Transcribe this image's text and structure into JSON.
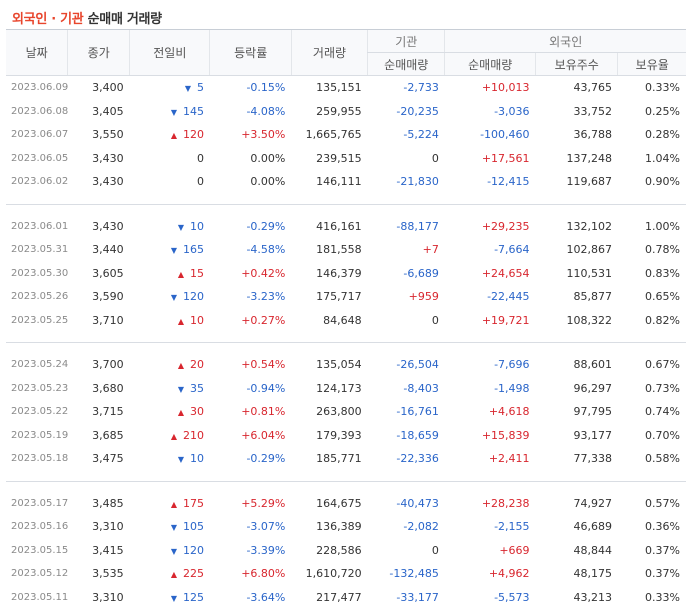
{
  "title": {
    "part1": "외국인 · 기관",
    "part2": "순매매 거래량"
  },
  "headers": {
    "date": "날짜",
    "close": "종가",
    "change": "전일비",
    "rate": "등락률",
    "volume": "거래량",
    "institution": "기관",
    "foreign": "외국인",
    "inst_net": "순매매량",
    "foreign_net": "순매매량",
    "holding": "보유주수",
    "holding_rate": "보유율"
  },
  "colors": {
    "up": "#d8262e",
    "down": "#2a65c9",
    "title_accent": "#e8452c"
  },
  "groups": [
    [
      {
        "date": "2023.06.09",
        "close": "3,400",
        "dir": "down",
        "change": "5",
        "rate": "-0.15%",
        "volume": "135,151",
        "inst": "-2,733",
        "foreign": "+10,013",
        "holding": "43,765",
        "hrate": "0.33%"
      },
      {
        "date": "2023.06.08",
        "close": "3,405",
        "dir": "down",
        "change": "145",
        "rate": "-4.08%",
        "volume": "259,955",
        "inst": "-20,235",
        "foreign": "-3,036",
        "holding": "33,752",
        "hrate": "0.25%"
      },
      {
        "date": "2023.06.07",
        "close": "3,550",
        "dir": "up",
        "change": "120",
        "rate": "+3.50%",
        "volume": "1,665,765",
        "inst": "-5,224",
        "foreign": "-100,460",
        "holding": "36,788",
        "hrate": "0.28%"
      },
      {
        "date": "2023.06.05",
        "close": "3,430",
        "dir": "none",
        "change": "0",
        "rate": "0.00%",
        "volume": "239,515",
        "inst": "0",
        "foreign": "+17,561",
        "holding": "137,248",
        "hrate": "1.04%"
      },
      {
        "date": "2023.06.02",
        "close": "3,430",
        "dir": "none",
        "change": "0",
        "rate": "0.00%",
        "volume": "146,111",
        "inst": "-21,830",
        "foreign": "-12,415",
        "holding": "119,687",
        "hrate": "0.90%"
      }
    ],
    [
      {
        "date": "2023.06.01",
        "close": "3,430",
        "dir": "down",
        "change": "10",
        "rate": "-0.29%",
        "volume": "416,161",
        "inst": "-88,177",
        "foreign": "+29,235",
        "holding": "132,102",
        "hrate": "1.00%"
      },
      {
        "date": "2023.05.31",
        "close": "3,440",
        "dir": "down",
        "change": "165",
        "rate": "-4.58%",
        "volume": "181,558",
        "inst": "+7",
        "foreign": "-7,664",
        "holding": "102,867",
        "hrate": "0.78%"
      },
      {
        "date": "2023.05.30",
        "close": "3,605",
        "dir": "up",
        "change": "15",
        "rate": "+0.42%",
        "volume": "146,379",
        "inst": "-6,689",
        "foreign": "+24,654",
        "holding": "110,531",
        "hrate": "0.83%"
      },
      {
        "date": "2023.05.26",
        "close": "3,590",
        "dir": "down",
        "change": "120",
        "rate": "-3.23%",
        "volume": "175,717",
        "inst": "+959",
        "foreign": "-22,445",
        "holding": "85,877",
        "hrate": "0.65%"
      },
      {
        "date": "2023.05.25",
        "close": "3,710",
        "dir": "up",
        "change": "10",
        "rate": "+0.27%",
        "volume": "84,648",
        "inst": "0",
        "foreign": "+19,721",
        "holding": "108,322",
        "hrate": "0.82%"
      }
    ],
    [
      {
        "date": "2023.05.24",
        "close": "3,700",
        "dir": "up",
        "change": "20",
        "rate": "+0.54%",
        "volume": "135,054",
        "inst": "-26,504",
        "foreign": "-7,696",
        "holding": "88,601",
        "hrate": "0.67%"
      },
      {
        "date": "2023.05.23",
        "close": "3,680",
        "dir": "down",
        "change": "35",
        "rate": "-0.94%",
        "volume": "124,173",
        "inst": "-8,403",
        "foreign": "-1,498",
        "holding": "96,297",
        "hrate": "0.73%"
      },
      {
        "date": "2023.05.22",
        "close": "3,715",
        "dir": "up",
        "change": "30",
        "rate": "+0.81%",
        "volume": "263,800",
        "inst": "-16,761",
        "foreign": "+4,618",
        "holding": "97,795",
        "hrate": "0.74%"
      },
      {
        "date": "2023.05.19",
        "close": "3,685",
        "dir": "up",
        "change": "210",
        "rate": "+6.04%",
        "volume": "179,393",
        "inst": "-18,659",
        "foreign": "+15,839",
        "holding": "93,177",
        "hrate": "0.70%"
      },
      {
        "date": "2023.05.18",
        "close": "3,475",
        "dir": "down",
        "change": "10",
        "rate": "-0.29%",
        "volume": "185,771",
        "inst": "-22,336",
        "foreign": "+2,411",
        "holding": "77,338",
        "hrate": "0.58%"
      }
    ],
    [
      {
        "date": "2023.05.17",
        "close": "3,485",
        "dir": "up",
        "change": "175",
        "rate": "+5.29%",
        "volume": "164,675",
        "inst": "-40,473",
        "foreign": "+28,238",
        "holding": "74,927",
        "hrate": "0.57%"
      },
      {
        "date": "2023.05.16",
        "close": "3,310",
        "dir": "down",
        "change": "105",
        "rate": "-3.07%",
        "volume": "136,389",
        "inst": "-2,082",
        "foreign": "-2,155",
        "holding": "46,689",
        "hrate": "0.36%"
      },
      {
        "date": "2023.05.15",
        "close": "3,415",
        "dir": "down",
        "change": "120",
        "rate": "-3.39%",
        "volume": "228,586",
        "inst": "0",
        "foreign": "+669",
        "holding": "48,844",
        "hrate": "0.37%"
      },
      {
        "date": "2023.05.12",
        "close": "3,535",
        "dir": "up",
        "change": "225",
        "rate": "+6.80%",
        "volume": "1,610,720",
        "inst": "-132,485",
        "foreign": "+4,962",
        "holding": "48,175",
        "hrate": "0.37%"
      },
      {
        "date": "2023.05.11",
        "close": "3,310",
        "dir": "down",
        "change": "125",
        "rate": "-3.64%",
        "volume": "217,477",
        "inst": "-33,177",
        "foreign": "-5,573",
        "holding": "43,213",
        "hrate": "0.33%"
      }
    ]
  ]
}
